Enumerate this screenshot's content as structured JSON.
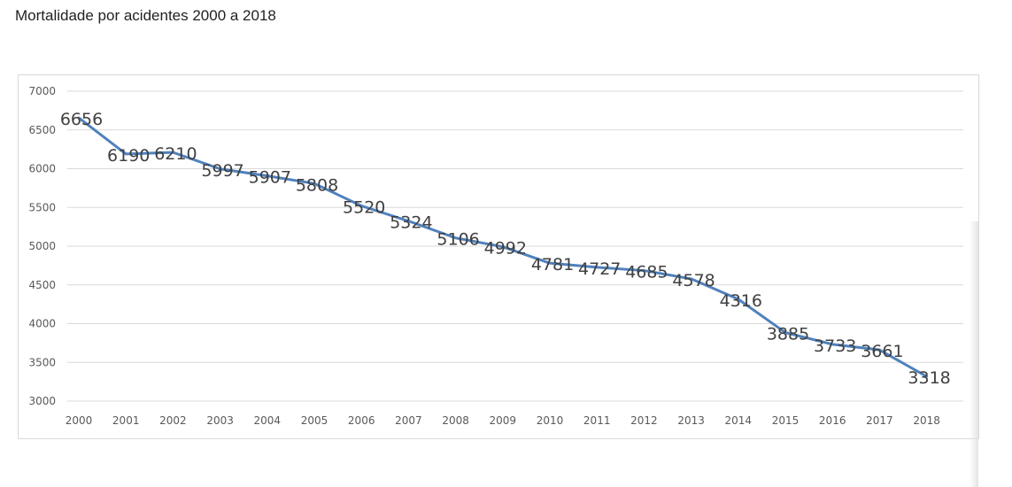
{
  "page": {
    "title": "Mortalidade por acidentes 2000 a 2018"
  },
  "chart_data": {
    "type": "line",
    "title": "",
    "xlabel": "",
    "ylabel": "",
    "categories": [
      "2000",
      "2001",
      "2002",
      "2003",
      "2004",
      "2005",
      "2006",
      "2007",
      "2008",
      "2009",
      "2010",
      "2011",
      "2012",
      "2013",
      "2014",
      "2015",
      "2016",
      "2017",
      "2018"
    ],
    "series": [
      {
        "values": [
          6656,
          6190,
          6210,
          5997,
          5907,
          5808,
          5520,
          5324,
          5106,
          4992,
          4781,
          4727,
          4685,
          4578,
          4316,
          3885,
          3733,
          3661,
          3318
        ],
        "color": "#4f81bd"
      }
    ],
    "ylim": [
      3000,
      7000
    ],
    "yticks": [
      "3000",
      "3500",
      "4000",
      "4500",
      "5000",
      "5500",
      "6000",
      "6500",
      "7000"
    ],
    "grid": true,
    "legend": "none",
    "data_labels": true
  }
}
